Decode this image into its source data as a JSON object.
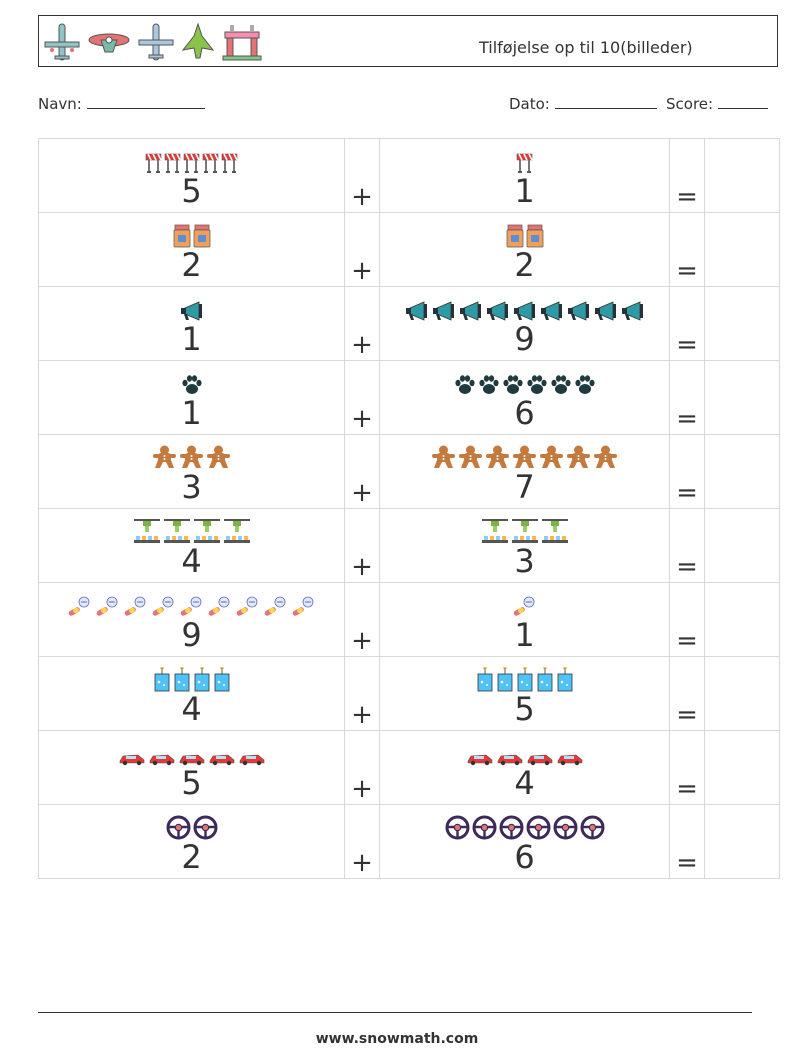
{
  "header": {
    "title": "Tilføjelse op til 10(billeder)",
    "icons": [
      "airplane-icon",
      "propeller-plane-icon",
      "jet-icon",
      "fighter-jet-icon",
      "gate-icon"
    ]
  },
  "meta": {
    "name_label": "Navn:",
    "date_label": "Dato:",
    "score_label": "Score:"
  },
  "operators": {
    "plus": "+",
    "equals": "="
  },
  "rows": [
    {
      "icon": "barrier-icon",
      "a": 5,
      "a_label": "5",
      "b": 1,
      "b_label": "1"
    },
    {
      "icon": "jar-icon",
      "a": 2,
      "a_label": "2",
      "b": 2,
      "b_label": "2"
    },
    {
      "icon": "megaphone-icon",
      "a": 1,
      "a_label": "1",
      "b": 9,
      "b_label": "9"
    },
    {
      "icon": "paw-icon",
      "a": 1,
      "a_label": "1",
      "b": 6,
      "b_label": "6"
    },
    {
      "icon": "gingerbread-icon",
      "a": 3,
      "a_label": "3",
      "b": 7,
      "b_label": "7"
    },
    {
      "icon": "lab-station-icon",
      "a": 4,
      "a_label": "4",
      "b": 3,
      "b_label": "3"
    },
    {
      "icon": "pills-icon",
      "a": 9,
      "a_label": "9",
      "b": 1,
      "b_label": "1"
    },
    {
      "icon": "beaker-icon",
      "a": 4,
      "a_label": "4",
      "b": 5,
      "b_label": "5"
    },
    {
      "icon": "car-icon",
      "a": 5,
      "a_label": "5",
      "b": 4,
      "b_label": "4"
    },
    {
      "icon": "steering-wheel-icon",
      "a": 2,
      "a_label": "2",
      "b": 6,
      "b_label": "6"
    }
  ],
  "footer": {
    "url": "www.snowmath.com"
  }
}
